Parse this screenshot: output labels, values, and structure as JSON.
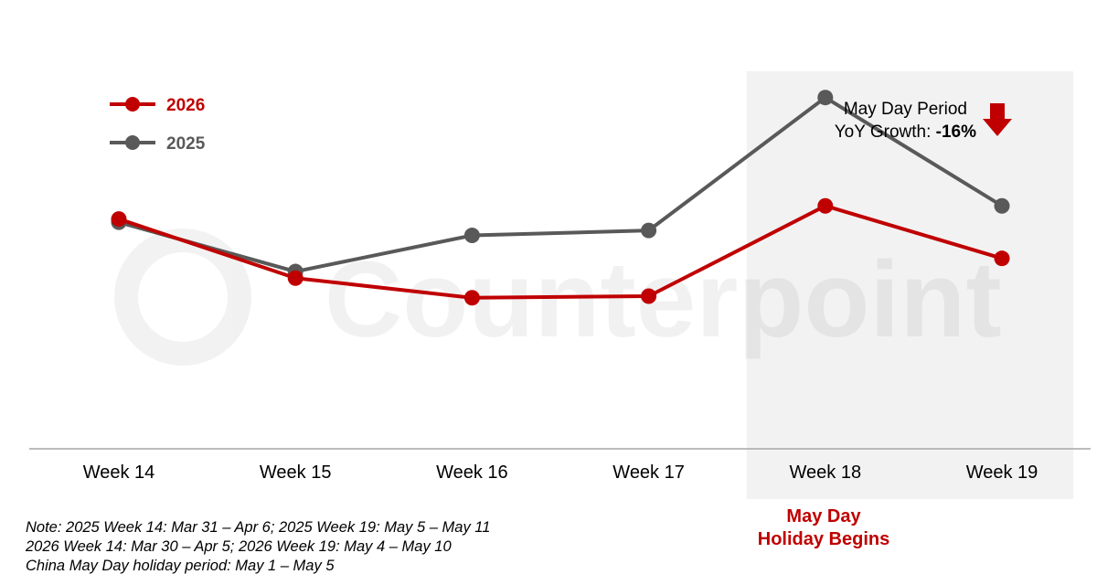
{
  "chart_data": {
    "type": "line",
    "categories": [
      "Week 14",
      "Week 15",
      "Week 16",
      "Week 17",
      "Week 18",
      "Week 19"
    ],
    "series": [
      {
        "name": "2026",
        "color": "#c00000",
        "values": [
          100,
          82,
          76,
          76.5,
          104,
          88
        ]
      },
      {
        "name": "2025",
        "color": "#595959",
        "values": [
          99,
          84,
          95,
          96.5,
          137,
          104
        ]
      }
    ],
    "ylim": [
      30,
      150
    ],
    "grid": false,
    "legend_position": "top-left",
    "y_axis_visible": false,
    "highlight_band": {
      "from": "Week 18",
      "to": "Week 19",
      "color": "#f2f2f2"
    },
    "annotation": {
      "line1": "May Day Period",
      "line2_prefix": "YoY Growth: ",
      "line2_value": "-16%",
      "arrow": "down-arrow-icon",
      "arrow_color": "#c00000"
    },
    "holiday_label": {
      "line1": "May Day",
      "line2": "Holiday Begins",
      "color": "#c00000"
    },
    "watermark": "Counterpoint"
  },
  "notes": [
    "Note: 2025 Week 14: Mar 31 – Apr 6; 2025 Week 19: May 5 – May 11",
    "2026 Week 14: Mar 30 – Apr 5; 2026 Week 19: May 4 – May 10",
    "China May Day holiday period: May 1 – May 5"
  ]
}
